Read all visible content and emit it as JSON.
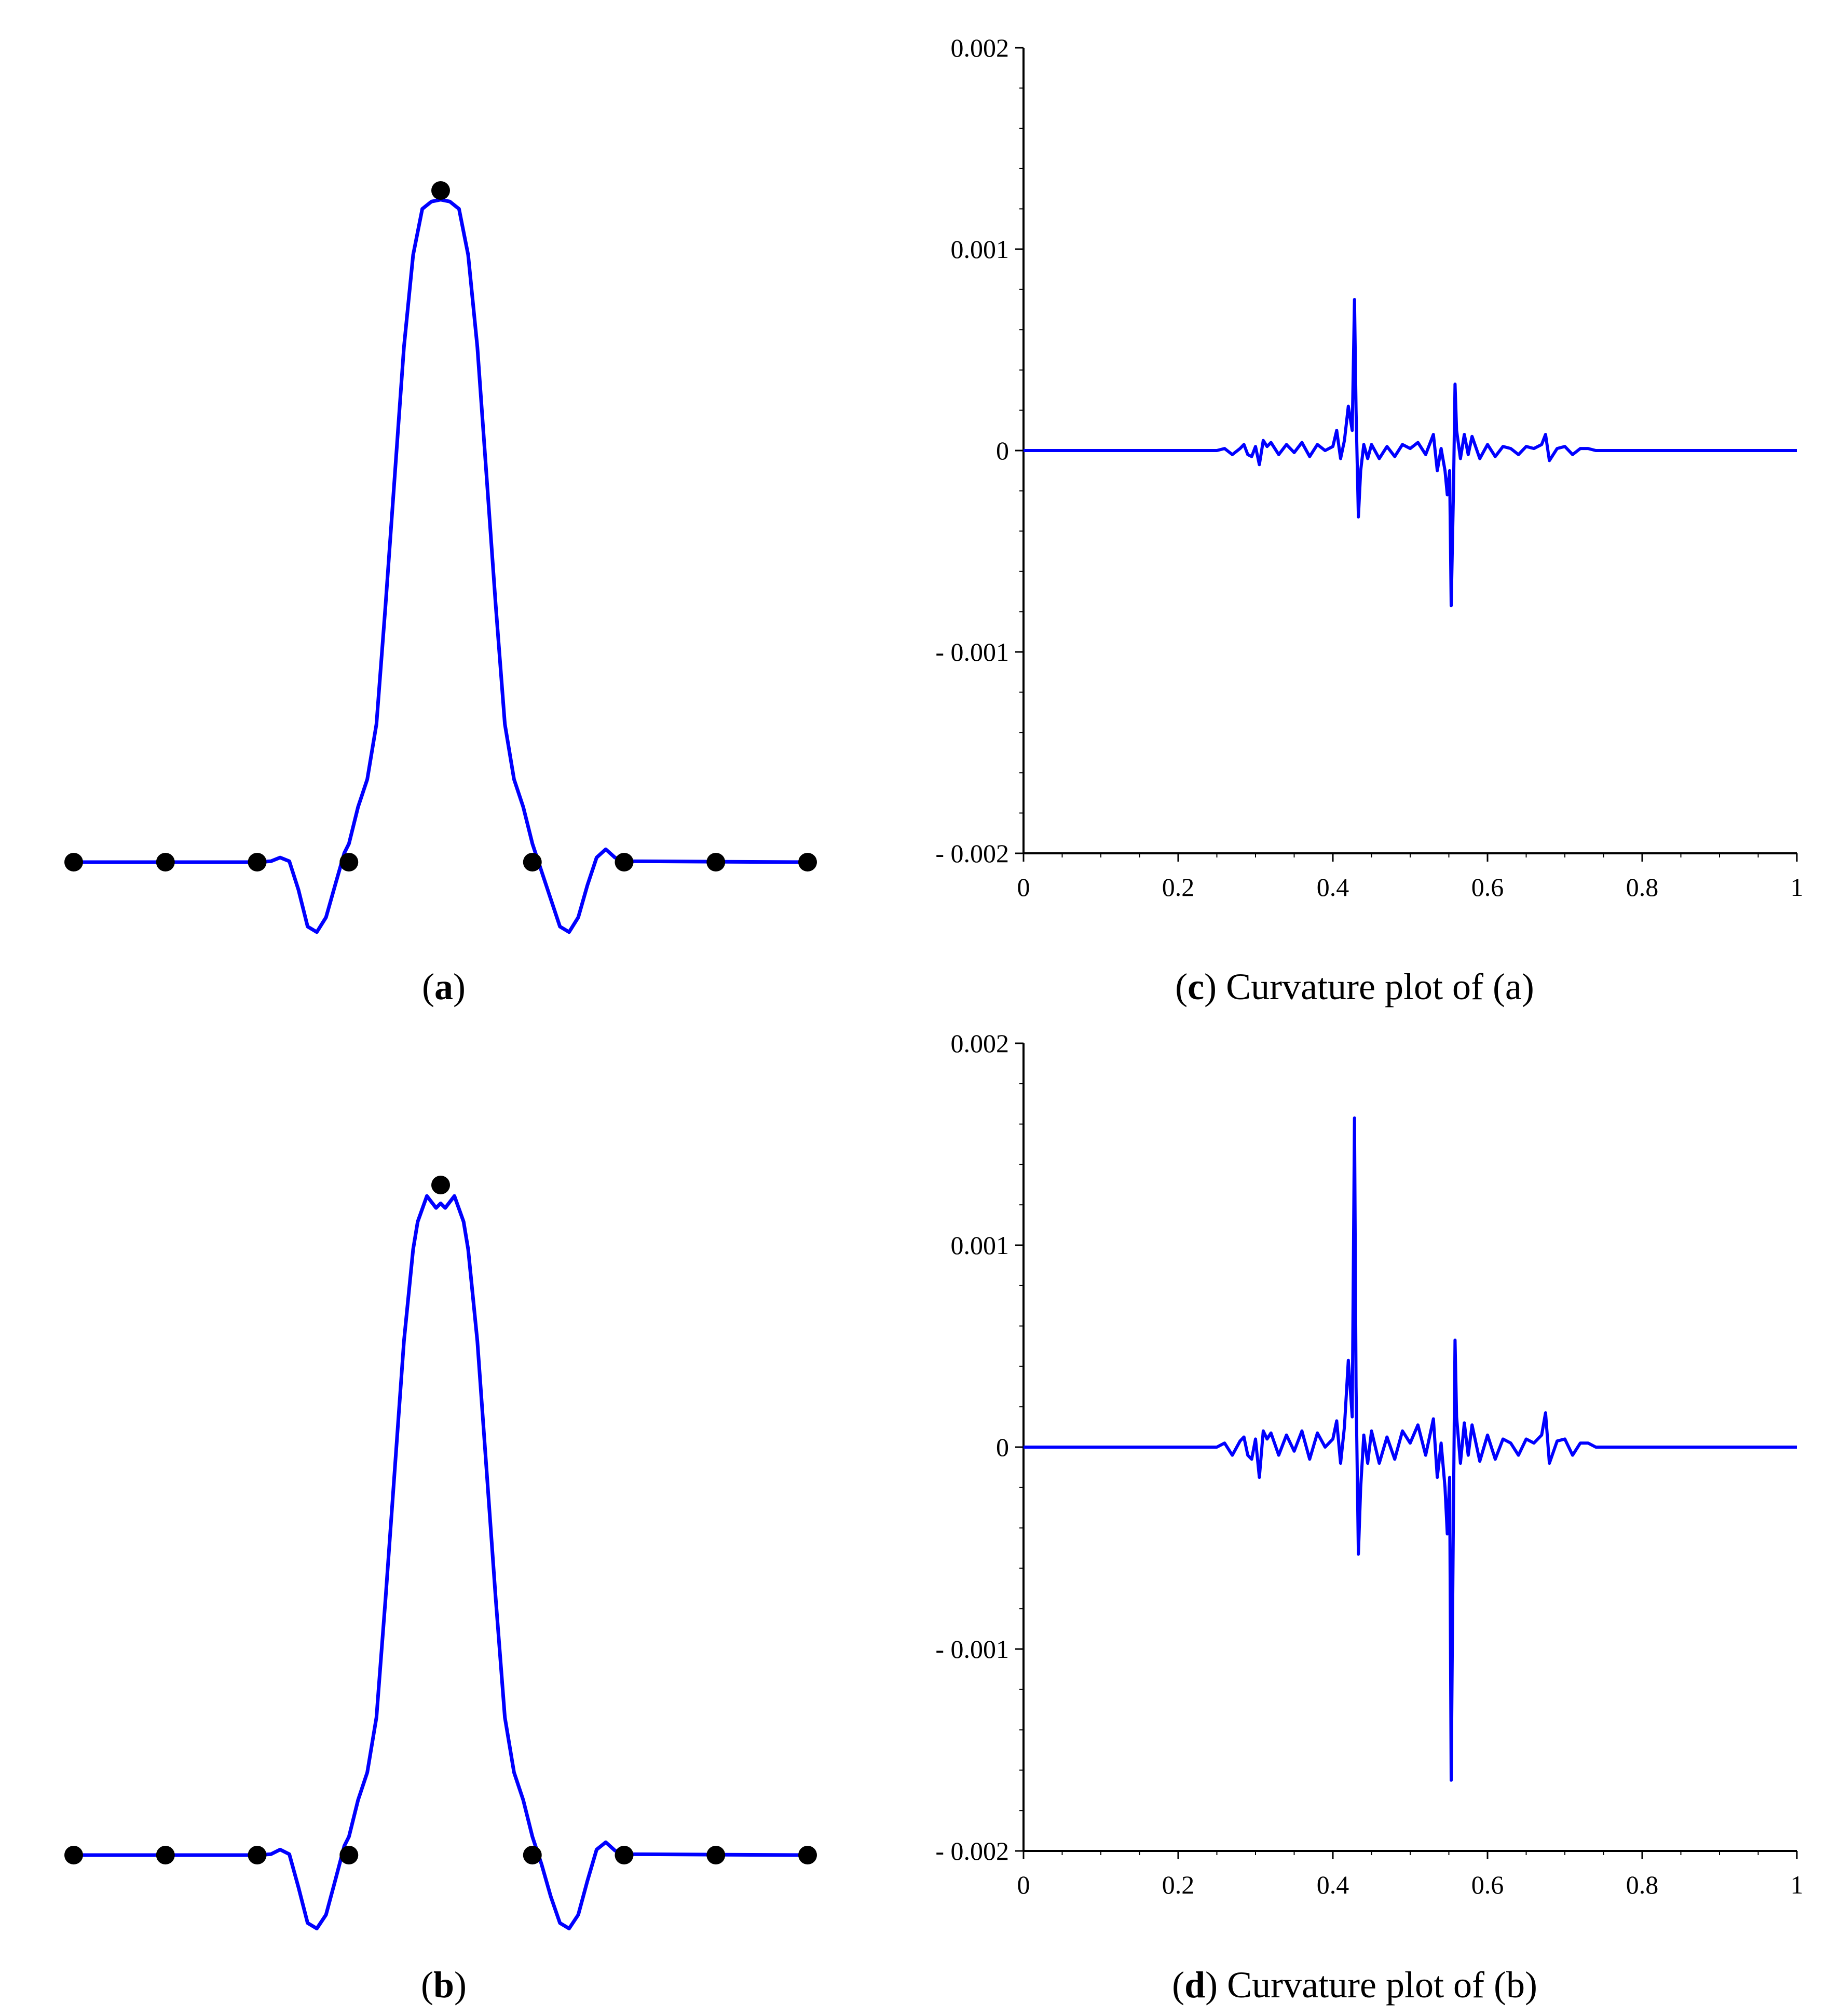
{
  "captions": {
    "a": {
      "open": "(",
      "letter": "a",
      "close": ")"
    },
    "b": {
      "open": "(",
      "letter": "b",
      "close": ")"
    },
    "c": {
      "open": "(",
      "letter": "c",
      "close": ") Curvature plot of (a)"
    },
    "d": {
      "open": "(",
      "letter": "d",
      "close": ") Curvature plot of (b)"
    }
  },
  "colors": {
    "curve": "#0000ff",
    "points": "#000000",
    "axis": "#000000"
  },
  "chart_data": [
    {
      "id": "a",
      "type": "line",
      "title": "",
      "xlabel": "",
      "ylabel": "",
      "axes_visible": false,
      "xlim": [
        0,
        8
      ],
      "ylim": [
        -0.08,
        0.73
      ],
      "control_points": {
        "x": [
          0,
          1,
          2,
          3,
          4,
          5,
          6,
          7,
          8
        ],
        "y": [
          0,
          0,
          0,
          0,
          0.73,
          0,
          0,
          0,
          0
        ]
      },
      "curve": {
        "x": [
          0,
          2.0,
          2.15,
          2.25,
          2.35,
          2.45,
          2.55,
          2.65,
          2.75,
          2.85,
          2.95,
          3.0,
          3.1,
          3.2,
          3.3,
          3.4,
          3.5,
          3.6,
          3.7,
          3.8,
          3.9,
          4.0,
          4.1,
          4.2,
          4.3,
          4.4,
          4.5,
          4.6,
          4.7,
          4.8,
          4.9,
          5.0,
          5.1,
          5.2,
          5.3,
          5.4,
          5.5,
          5.6,
          5.7,
          5.8,
          5.9,
          6.0,
          8.0
        ],
        "y": [
          0,
          0,
          0.001,
          0.005,
          0.001,
          -0.03,
          -0.07,
          -0.076,
          -0.06,
          -0.025,
          0.01,
          0.02,
          0.06,
          0.09,
          0.15,
          0.28,
          0.42,
          0.56,
          0.66,
          0.71,
          0.718,
          0.72,
          0.718,
          0.71,
          0.66,
          0.56,
          0.42,
          0.28,
          0.15,
          0.09,
          0.06,
          0.02,
          -0.01,
          -0.04,
          -0.07,
          -0.076,
          -0.06,
          -0.025,
          0.005,
          0.014,
          0.005,
          0.001,
          0
        ]
      }
    },
    {
      "id": "b",
      "type": "line",
      "title": "",
      "xlabel": "",
      "ylabel": "",
      "axes_visible": false,
      "xlim": [
        0,
        8
      ],
      "ylim": [
        -0.08,
        0.73
      ],
      "control_points": {
        "x": [
          0,
          1,
          2,
          3,
          4,
          5,
          6,
          7,
          8
        ],
        "y": [
          0,
          0,
          0,
          0,
          0.73,
          0,
          0,
          0,
          0
        ]
      },
      "curve": {
        "x": [
          0,
          2.0,
          2.15,
          2.25,
          2.35,
          2.45,
          2.55,
          2.65,
          2.75,
          2.85,
          2.95,
          3.0,
          3.1,
          3.2,
          3.3,
          3.4,
          3.5,
          3.6,
          3.7,
          3.75,
          3.85,
          3.95,
          4.0,
          4.05,
          4.15,
          4.25,
          4.3,
          4.4,
          4.5,
          4.6,
          4.7,
          4.8,
          4.9,
          5.0,
          5.1,
          5.2,
          5.3,
          5.4,
          5.5,
          5.6,
          5.7,
          5.8,
          5.9,
          6.0,
          8.0
        ],
        "y": [
          0,
          0,
          0.001,
          0.006,
          0.001,
          -0.035,
          -0.074,
          -0.08,
          -0.065,
          -0.028,
          0.01,
          0.02,
          0.06,
          0.09,
          0.15,
          0.28,
          0.42,
          0.56,
          0.66,
          0.69,
          0.718,
          0.705,
          0.71,
          0.705,
          0.718,
          0.69,
          0.66,
          0.56,
          0.42,
          0.28,
          0.15,
          0.09,
          0.06,
          0.02,
          -0.01,
          -0.045,
          -0.074,
          -0.08,
          -0.065,
          -0.028,
          0.006,
          0.014,
          0.005,
          0.001,
          0
        ]
      }
    },
    {
      "id": "c",
      "type": "line",
      "title": "",
      "xlabel": "",
      "ylabel": "",
      "xlim": [
        0,
        1
      ],
      "ylim": [
        -0.002,
        0.002
      ],
      "grid": false,
      "x_ticks": [
        "0",
        "0.2",
        "0.4",
        "0.6",
        "0.8",
        "1"
      ],
      "y_ticks": [
        "0.002",
        "0.001",
        "0",
        "- 0.001",
        "- 0.002"
      ],
      "series": [
        {
          "x": [
            0,
            0.25,
            0.26,
            0.27,
            0.28,
            0.285,
            0.29,
            0.295,
            0.3,
            0.305,
            0.31,
            0.315,
            0.32,
            0.33,
            0.34,
            0.35,
            0.36,
            0.37,
            0.38,
            0.39,
            0.4,
            0.405,
            0.41,
            0.415,
            0.42,
            0.425,
            0.428,
            0.43,
            0.433,
            0.436,
            0.44,
            0.445,
            0.45,
            0.46,
            0.47,
            0.48,
            0.49,
            0.5,
            0.51,
            0.52,
            0.53,
            0.535,
            0.54,
            0.545,
            0.548,
            0.551,
            0.553,
            0.556,
            0.558,
            0.56,
            0.565,
            0.57,
            0.575,
            0.58,
            0.59,
            0.6,
            0.61,
            0.62,
            0.63,
            0.64,
            0.65,
            0.66,
            0.67,
            0.675,
            0.68,
            0.69,
            0.7,
            0.71,
            0.72,
            0.73,
            0.74,
            0.75,
            1.0
          ],
          "y": [
            0,
            0,
            1e-05,
            -2e-05,
            1e-05,
            3e-05,
            -2e-05,
            -3e-05,
            2e-05,
            -7e-05,
            5e-05,
            2e-05,
            4e-05,
            -2e-05,
            3e-05,
            -1e-05,
            4e-05,
            -3e-05,
            3e-05,
            0.0,
            2e-05,
            0.0001,
            -4e-05,
            5e-05,
            0.00022,
            0.0001,
            0.00075,
            0.0002,
            -0.00033,
            -0.0001,
            3e-05,
            -4e-05,
            3e-05,
            -4e-05,
            2e-05,
            -3e-05,
            3e-05,
            1e-05,
            4e-05,
            -2e-05,
            8e-05,
            -0.0001,
            1e-05,
            -0.0001,
            -0.00022,
            -0.0001,
            -0.00077,
            -0.0002,
            0.00033,
            0.0001,
            -4e-05,
            8e-05,
            -2e-05,
            7e-05,
            -4e-05,
            3e-05,
            -3e-05,
            2e-05,
            1e-05,
            -2e-05,
            2e-05,
            1e-05,
            3e-05,
            8e-05,
            -5e-05,
            1e-05,
            2e-05,
            -2e-05,
            1e-05,
            1e-05,
            0.0,
            0,
            0
          ]
        }
      ]
    },
    {
      "id": "d",
      "type": "line",
      "title": "",
      "xlabel": "",
      "ylabel": "",
      "xlim": [
        0,
        1
      ],
      "ylim": [
        -0.002,
        0.002
      ],
      "grid": false,
      "x_ticks": [
        "0",
        "0.2",
        "0.4",
        "0.6",
        "0.8",
        "1"
      ],
      "y_ticks": [
        "0.002",
        "0.001",
        "0",
        "- 0.001",
        "- 0.002"
      ],
      "series": [
        {
          "x": [
            0,
            0.25,
            0.26,
            0.27,
            0.28,
            0.285,
            0.29,
            0.295,
            0.3,
            0.305,
            0.31,
            0.315,
            0.32,
            0.33,
            0.34,
            0.35,
            0.36,
            0.37,
            0.38,
            0.39,
            0.4,
            0.405,
            0.41,
            0.415,
            0.42,
            0.425,
            0.428,
            0.43,
            0.433,
            0.436,
            0.44,
            0.445,
            0.45,
            0.46,
            0.47,
            0.48,
            0.49,
            0.5,
            0.51,
            0.52,
            0.53,
            0.535,
            0.54,
            0.545,
            0.548,
            0.551,
            0.553,
            0.556,
            0.558,
            0.56,
            0.565,
            0.57,
            0.575,
            0.58,
            0.59,
            0.6,
            0.61,
            0.62,
            0.63,
            0.64,
            0.65,
            0.66,
            0.67,
            0.675,
            0.68,
            0.69,
            0.7,
            0.71,
            0.72,
            0.73,
            0.74,
            0.75,
            1.0
          ],
          "y": [
            0,
            0,
            2e-05,
            -4e-05,
            3e-05,
            5e-05,
            -4e-05,
            -6e-05,
            4e-05,
            -0.00015,
            8e-05,
            4e-05,
            7e-05,
            -4e-05,
            6e-05,
            -2e-05,
            8e-05,
            -6e-05,
            7e-05,
            0.0,
            4e-05,
            0.00013,
            -8e-05,
            0.0001,
            0.00043,
            0.00015,
            0.00163,
            0.0003,
            -0.00053,
            -0.0002,
            6e-05,
            -8e-05,
            8e-05,
            -8e-05,
            5e-05,
            -6e-05,
            8e-05,
            2e-05,
            0.00011,
            -4e-05,
            0.00014,
            -0.00015,
            2e-05,
            -0.0002,
            -0.00043,
            -0.00015,
            -0.00165,
            -0.0003,
            0.00053,
            0.00015,
            -8e-05,
            0.00012,
            -4e-05,
            0.00011,
            -7e-05,
            6e-05,
            -6e-05,
            4e-05,
            2e-05,
            -4e-05,
            4e-05,
            2e-05,
            6e-05,
            0.00017,
            -8e-05,
            3e-05,
            4e-05,
            -4e-05,
            2e-05,
            2e-05,
            0.0,
            0,
            0
          ]
        }
      ]
    }
  ]
}
